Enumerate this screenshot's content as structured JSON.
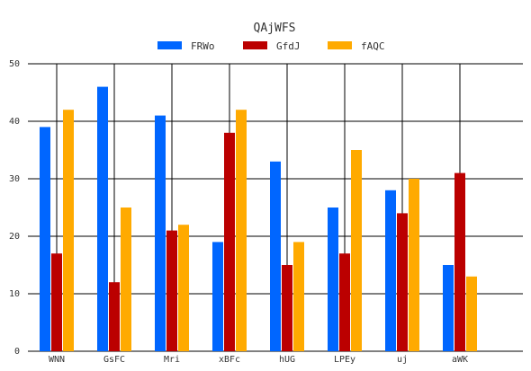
{
  "chart_data": {
    "type": "bar",
    "title": "QAjWFS",
    "xlabel": "",
    "ylabel": "",
    "ylim": [
      0,
      50
    ],
    "yticks": [
      0,
      10,
      20,
      30,
      40,
      50
    ],
    "grid": true,
    "legend_position": "top",
    "categories": [
      "WNN",
      "GsFC",
      "Mri",
      "xBFc",
      "hUG",
      "LPEy",
      "uj",
      "aWK"
    ],
    "series": [
      {
        "name": "FRWo",
        "color": "#0066ff",
        "values": [
          39,
          46,
          41,
          19,
          33,
          25,
          28,
          15
        ]
      },
      {
        "name": "GfdJ",
        "color": "#bb0000",
        "values": [
          17,
          12,
          21,
          38,
          15,
          17,
          24,
          31
        ]
      },
      {
        "name": "fAQC",
        "color": "#ffaa00",
        "values": [
          42,
          25,
          22,
          42,
          19,
          35,
          30,
          13
        ]
      }
    ]
  }
}
